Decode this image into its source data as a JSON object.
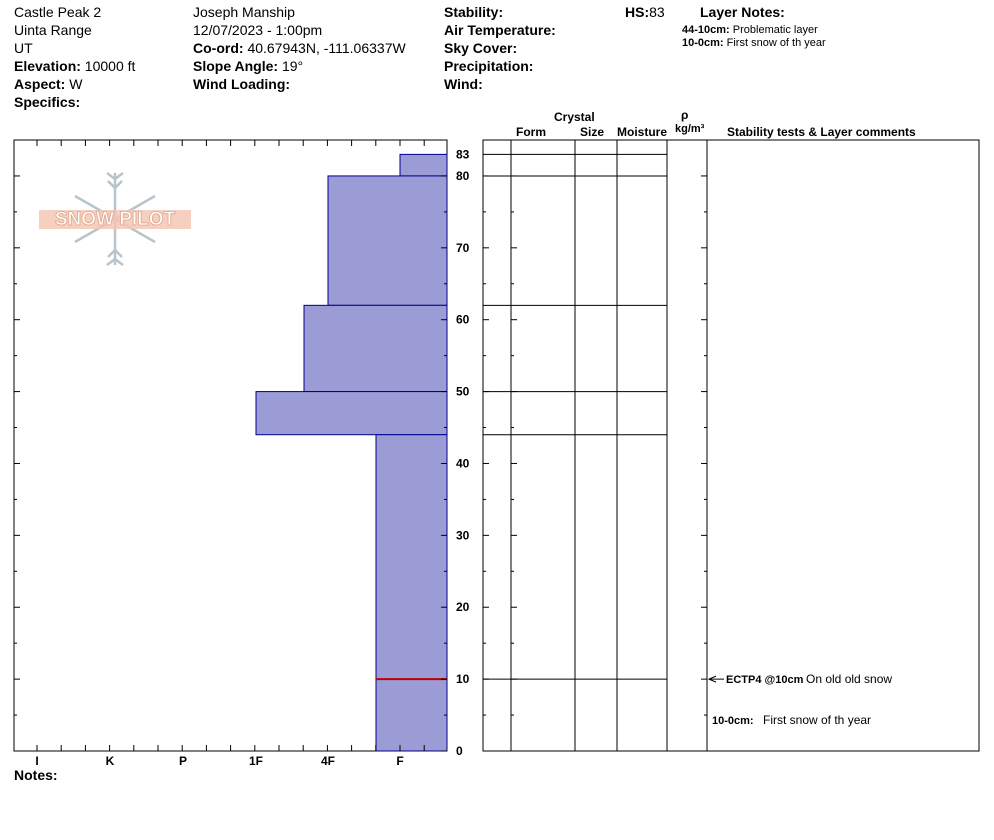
{
  "header": {
    "location": "Castle Peak 2",
    "range": "Uinta Range",
    "state": "UT",
    "elevation_label": "Elevation:",
    "elevation_value": "10000 ft",
    "aspect_label": "Aspect:",
    "aspect_value": "W",
    "specifics_label": "Specifics:",
    "observer": "Joseph Manship",
    "datetime": "12/07/2023 - 1:00pm",
    "coord_label": "Co-ord:",
    "coord_value": "40.67943N, -111.06337W",
    "slope_label": "Slope Angle:",
    "slope_value": "19°",
    "wind_loading_label": "Wind Loading:",
    "stability_label": "Stability:",
    "air_temp_label": "Air Temperature:",
    "sky_cover_label": "Sky Cover:",
    "precip_label": "Precipitation:",
    "wind_label": "Wind:",
    "hs_label": "HS:",
    "hs_value": "83",
    "layer_notes_title": "Layer Notes:",
    "layer_notes": [
      {
        "range": "44-10cm:",
        "text": "Problematic layer"
      },
      {
        "range": "10-0cm:",
        "text": "First snow of th year"
      }
    ]
  },
  "logo": {
    "text": "SNOW PILOT"
  },
  "columns": {
    "crystal": "Crystal",
    "form": "Form",
    "size": "Size",
    "moisture": "Moisture",
    "rho": "ρ",
    "density_unit": "kg/m³",
    "comments": "Stability tests & Layer comments"
  },
  "notes_label": "Notes:",
  "chart_data": {
    "type": "bar",
    "orientation": "horizontal",
    "y_axis": {
      "label": "",
      "unit": "cm",
      "range": [
        0,
        83
      ],
      "ticks": [
        0,
        10,
        20,
        30,
        40,
        50,
        60,
        70,
        80,
        83
      ]
    },
    "x_axis": {
      "label": "",
      "categories": [
        "I",
        "K",
        "P",
        "1F",
        "4F",
        "F"
      ],
      "direction": "right-to-left hardness"
    },
    "bar_color": "#9b9bd6",
    "bar_edge_color": "#00008b",
    "layers": [
      {
        "top": 83,
        "bottom": 80,
        "hardness": "F"
      },
      {
        "top": 80,
        "bottom": 62,
        "hardness": "4F"
      },
      {
        "top": 62,
        "bottom": 50,
        "hardness": "4F+"
      },
      {
        "top": 50,
        "bottom": 44,
        "hardness": "1F"
      },
      {
        "top": 44,
        "bottom": 0,
        "hardness": "F+"
      }
    ],
    "boundaries": [
      83,
      80,
      62,
      50,
      44,
      10
    ],
    "test_result": {
      "depth": 10,
      "label": "ECTP4 @10cm",
      "comment": "On old old snow"
    },
    "layer_comment": {
      "range": "10-0cm:",
      "text": "First snow of th year"
    },
    "grid": false
  }
}
